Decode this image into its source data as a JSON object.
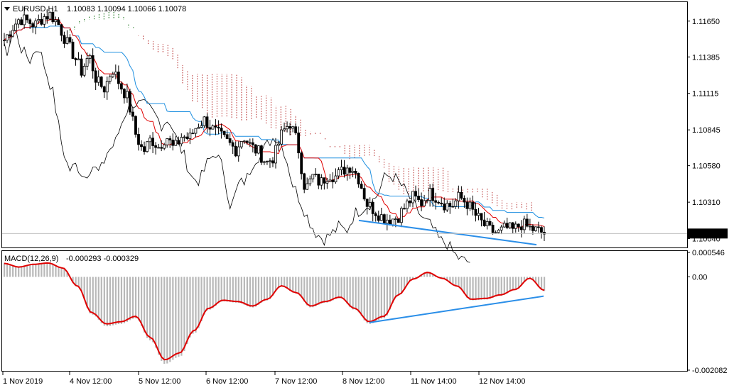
{
  "header": {
    "symbol": "EURUSD,H1",
    "ohlc": "1.10083 1.10094 1.10066 1.10078"
  },
  "macd_header": {
    "label": "MACD(12,26,9)",
    "values": "-0.000293 -0.000329"
  },
  "colors": {
    "bull_candle": "#000000",
    "bear_candle": "#000000",
    "tenkan": "#e00000",
    "kijun": "#1e8fe0",
    "chikou": "#000000",
    "kumo_bull": "#006400",
    "kumo_bear": "#b22222",
    "macd_line": "#e00000",
    "histogram": "#b8b8b8",
    "trendline": "#2a8ee8",
    "current_price_box": "#000000"
  },
  "chart_data": [
    {
      "type": "candlestick",
      "name": "EURUSD,H1",
      "indicators": [
        "Ichimoku Kinko Hyo"
      ],
      "ylim": [
        1.0998,
        1.1178
      ],
      "y_ticks": [
        "1.11650",
        "1.11385",
        "1.11115",
        "1.10845",
        "1.10580",
        "1.10310",
        "1.10040"
      ],
      "current_price": "1.10078",
      "x_ticks": [
        "1 Nov 2019",
        "4 Nov 12:00",
        "5 Nov 12:00",
        "6 Nov 12:00",
        "7 Nov 12:00",
        "8 Nov 12:00",
        "11 Nov 14:00",
        "12 Nov 14:00"
      ],
      "close_path": [
        1.1151,
        1.116,
        1.1167,
        1.1165,
        1.1162,
        1.1168,
        1.117,
        1.1163,
        1.115,
        1.114,
        1.1128,
        1.114,
        1.112,
        1.1115,
        1.113,
        1.1118,
        1.1108,
        1.1082,
        1.1068,
        1.1078,
        1.1072,
        1.108,
        1.107,
        1.108,
        1.1078,
        1.1088,
        1.1092,
        1.1085,
        1.108,
        1.1075,
        1.107,
        1.108,
        1.1072,
        1.1068,
        1.106,
        1.1065,
        1.1082,
        1.109,
        1.1075,
        1.104,
        1.105,
        1.1045,
        1.1052,
        1.105,
        1.1055,
        1.1058,
        1.1048,
        1.103,
        1.1025,
        1.102,
        1.1018,
        1.102,
        1.1028,
        1.1035,
        1.103,
        1.1038,
        1.1035,
        1.103,
        1.1028,
        1.1035,
        1.103,
        1.1022,
        1.1015,
        1.101,
        1.1008,
        1.1012,
        1.101,
        1.1015,
        1.1012,
        1.101,
        1.1008
      ],
      "trendline": {
        "start": 1.10175,
        "end": 1.09995
      }
    },
    {
      "type": "macd",
      "name": "MACD(12,26,9)",
      "ylim": [
        -0.002082,
        0.000546
      ],
      "y_ticks": [
        "0.000546",
        "0.00",
        "-0.002082"
      ],
      "macd_line_path": [
        0.0003,
        0.00022,
        0.00028,
        0.00031,
        0.0002,
        -0.0002,
        -0.0008,
        -0.00105,
        -0.001,
        -0.00088,
        -0.00135,
        -0.00185,
        -0.0017,
        -0.0012,
        -0.0007,
        -0.00052,
        -0.00055,
        -0.00065,
        -0.0005,
        -0.0002,
        -0.00035,
        -0.00065,
        -0.00055,
        -0.00045,
        -0.0007,
        -0.001,
        -0.00088,
        -0.0004,
        -5e-05,
        0.0001,
        -3e-05,
        -0.0002,
        -0.0005,
        -0.00048,
        -0.0004,
        -0.00028,
        -3e-05,
        -0.0003
      ],
      "trendline": {
        "start": -0.00102,
        "end": -0.00043
      }
    }
  ]
}
